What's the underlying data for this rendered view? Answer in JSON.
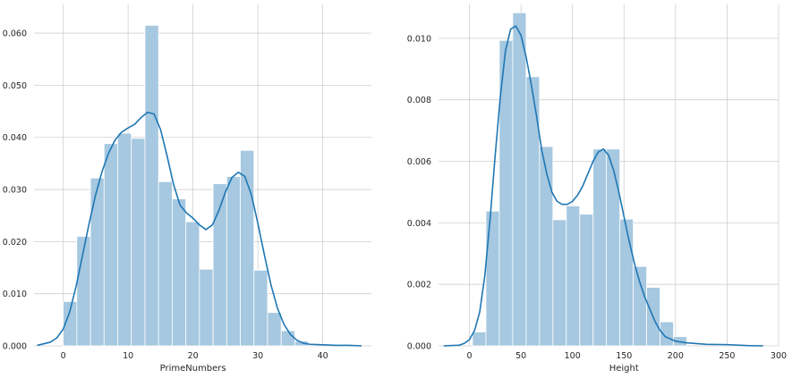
{
  "colors": {
    "bar_fill": "#a6c8e0",
    "bar_edge": "#ffffff",
    "kde_line": "#1f77b4",
    "grid": "#cfcfcf",
    "background": "#ffffff"
  },
  "chart_data": [
    {
      "type": "bar",
      "subtype": "histogram with KDE",
      "xlabel": "PrimeNumbers",
      "ylabel": "",
      "xlim": [
        -4.5,
        47.5
      ],
      "ylim": [
        0,
        0.0655
      ],
      "xticks": [
        0,
        10,
        20,
        30,
        40
      ],
      "xtick_labels": [
        "0",
        "10",
        "20",
        "30",
        "40"
      ],
      "yticks": [
        0,
        0.01,
        0.02,
        0.03,
        0.04,
        0.05,
        0.06
      ],
      "ytick_labels": [
        "0.000",
        "0.010",
        "0.020",
        "0.030",
        "0.040",
        "0.050",
        "0.060"
      ],
      "grid": true,
      "bins": [
        {
          "x0": 0.0,
          "x1": 2.1,
          "value": 0.0085
        },
        {
          "x0": 2.1,
          "x1": 4.2,
          "value": 0.021
        },
        {
          "x0": 4.2,
          "x1": 6.3,
          "value": 0.0322
        },
        {
          "x0": 6.3,
          "x1": 8.4,
          "value": 0.0388
        },
        {
          "x0": 8.4,
          "x1": 10.5,
          "value": 0.0408
        },
        {
          "x0": 10.5,
          "x1": 12.6,
          "value": 0.0398
        },
        {
          "x0": 12.6,
          "x1": 14.7,
          "value": 0.0615
        },
        {
          "x0": 14.7,
          "x1": 16.8,
          "value": 0.0315
        },
        {
          "x0": 16.8,
          "x1": 18.9,
          "value": 0.0282
        },
        {
          "x0": 18.9,
          "x1": 21.0,
          "value": 0.0238
        },
        {
          "x0": 21.0,
          "x1": 23.1,
          "value": 0.0147
        },
        {
          "x0": 23.1,
          "x1": 25.2,
          "value": 0.0311
        },
        {
          "x0": 25.2,
          "x1": 27.3,
          "value": 0.0325
        },
        {
          "x0": 27.3,
          "x1": 29.4,
          "value": 0.0375
        },
        {
          "x0": 29.4,
          "x1": 31.5,
          "value": 0.0145
        },
        {
          "x0": 31.5,
          "x1": 33.6,
          "value": 0.0064
        },
        {
          "x0": 33.6,
          "x1": 35.7,
          "value": 0.0029
        },
        {
          "x0": 35.7,
          "x1": 37.8,
          "value": 0.0009
        }
      ],
      "kde": {
        "x": [
          -4,
          -2,
          -1,
          0,
          1,
          2,
          3,
          4,
          5,
          6,
          7,
          8,
          9,
          10,
          11,
          12,
          13,
          14,
          15,
          16,
          17,
          18,
          19,
          20,
          21,
          22,
          23,
          24,
          25,
          26,
          27,
          28,
          29,
          30,
          31,
          32,
          33,
          34,
          35,
          36,
          37,
          38,
          40,
          42,
          44,
          46
        ],
        "y": [
          0.0001,
          0.0007,
          0.0015,
          0.0032,
          0.0065,
          0.0115,
          0.0175,
          0.0235,
          0.029,
          0.0335,
          0.037,
          0.0395,
          0.041,
          0.0418,
          0.0425,
          0.0438,
          0.0448,
          0.0445,
          0.0415,
          0.0365,
          0.031,
          0.027,
          0.0255,
          0.0245,
          0.0232,
          0.0223,
          0.0232,
          0.026,
          0.0295,
          0.0323,
          0.0333,
          0.0325,
          0.029,
          0.0235,
          0.0175,
          0.0118,
          0.0073,
          0.0042,
          0.0022,
          0.0011,
          0.0005,
          0.0003,
          0.0002,
          0.0001,
          0.0001,
          0.0
        ]
      }
    },
    {
      "type": "bar",
      "subtype": "histogram with KDE",
      "xlabel": "Height",
      "ylabel": "",
      "xlim": [
        -30,
        300
      ],
      "ylim": [
        0,
        0.0111
      ],
      "xticks": [
        0,
        50,
        100,
        150,
        200,
        250,
        300
      ],
      "xtick_labels": [
        "0",
        "50",
        "100",
        "150",
        "200",
        "250",
        "300"
      ],
      "yticks": [
        0,
        0.002,
        0.004,
        0.006,
        0.008,
        0.01
      ],
      "ytick_labels": [
        "0.000",
        "0.002",
        "0.004",
        "0.006",
        "0.008",
        "0.010"
      ],
      "grid": true,
      "bins": [
        {
          "x0": 3,
          "x1": 16,
          "value": 0.00045
        },
        {
          "x0": 16,
          "x1": 29,
          "value": 0.00438
        },
        {
          "x0": 29,
          "x1": 42,
          "value": 0.00993
        },
        {
          "x0": 42,
          "x1": 55,
          "value": 0.01083
        },
        {
          "x0": 55,
          "x1": 68,
          "value": 0.00875
        },
        {
          "x0": 68,
          "x1": 81,
          "value": 0.00648
        },
        {
          "x0": 81,
          "x1": 94,
          "value": 0.0041
        },
        {
          "x0": 94,
          "x1": 107,
          "value": 0.00455
        },
        {
          "x0": 107,
          "x1": 120,
          "value": 0.00428
        },
        {
          "x0": 120,
          "x1": 133,
          "value": 0.0064
        },
        {
          "x0": 133,
          "x1": 146,
          "value": 0.0064
        },
        {
          "x0": 146,
          "x1": 159,
          "value": 0.00412
        },
        {
          "x0": 159,
          "x1": 172,
          "value": 0.00258
        },
        {
          "x0": 172,
          "x1": 185,
          "value": 0.0019
        },
        {
          "x0": 185,
          "x1": 198,
          "value": 0.00078
        },
        {
          "x0": 198,
          "x1": 211,
          "value": 0.0003
        }
      ],
      "kde": {
        "x": [
          -25,
          -10,
          -5,
          0,
          5,
          10,
          15,
          20,
          25,
          30,
          35,
          40,
          45,
          50,
          55,
          60,
          65,
          70,
          75,
          80,
          85,
          90,
          95,
          100,
          105,
          110,
          115,
          120,
          125,
          130,
          135,
          140,
          145,
          150,
          155,
          160,
          165,
          170,
          175,
          180,
          185,
          190,
          200,
          210,
          230,
          250,
          270,
          285
        ],
        "y": [
          0.0,
          2e-05,
          8e-05,
          0.0002,
          0.0005,
          0.0011,
          0.0023,
          0.0041,
          0.0062,
          0.0081,
          0.0096,
          0.0103,
          0.0104,
          0.0101,
          0.0094,
          0.0085,
          0.0075,
          0.0064,
          0.0056,
          0.005,
          0.0047,
          0.0046,
          0.0046,
          0.0047,
          0.0049,
          0.0052,
          0.0056,
          0.006,
          0.0063,
          0.0064,
          0.0062,
          0.0057,
          0.005,
          0.0042,
          0.0034,
          0.0027,
          0.0021,
          0.0016,
          0.0012,
          0.0008,
          0.0005,
          0.0003,
          0.00015,
          0.0001,
          5e-05,
          4e-05,
          1e-05,
          0.0
        ]
      }
    }
  ]
}
